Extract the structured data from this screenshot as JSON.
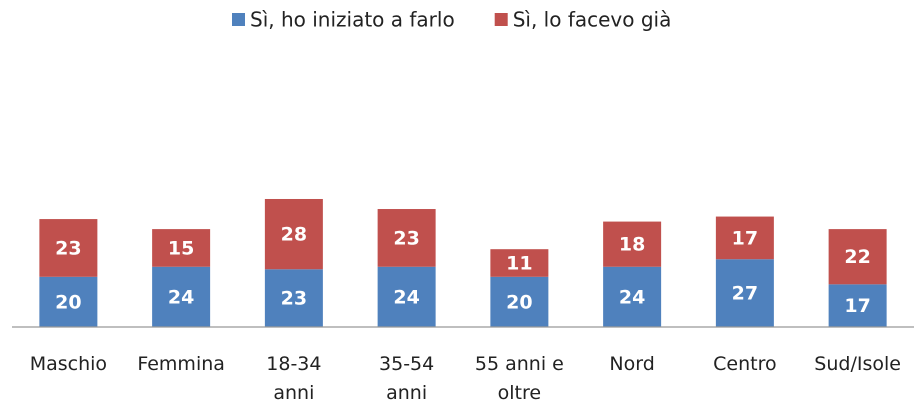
{
  "chart_data": {
    "type": "stacked_bar",
    "categories": [
      "Maschio",
      "Femmina",
      "18-34\nanni",
      "35-54\nanni",
      "55 anni e\noltre",
      "Nord",
      "Centro",
      "Sud/Isole"
    ],
    "series": [
      {
        "name": "Sì, ho iniziato a farlo",
        "color": "#4f81bd",
        "values": [
          20,
          24,
          23,
          24,
          20,
          24,
          27,
          17
        ]
      },
      {
        "name": "Sì, lo facevo già",
        "color": "#c0504d",
        "values": [
          23,
          15,
          28,
          23,
          11,
          18,
          17,
          22
        ]
      }
    ],
    "ylim": [
      0,
      100
    ],
    "legend": "top"
  }
}
